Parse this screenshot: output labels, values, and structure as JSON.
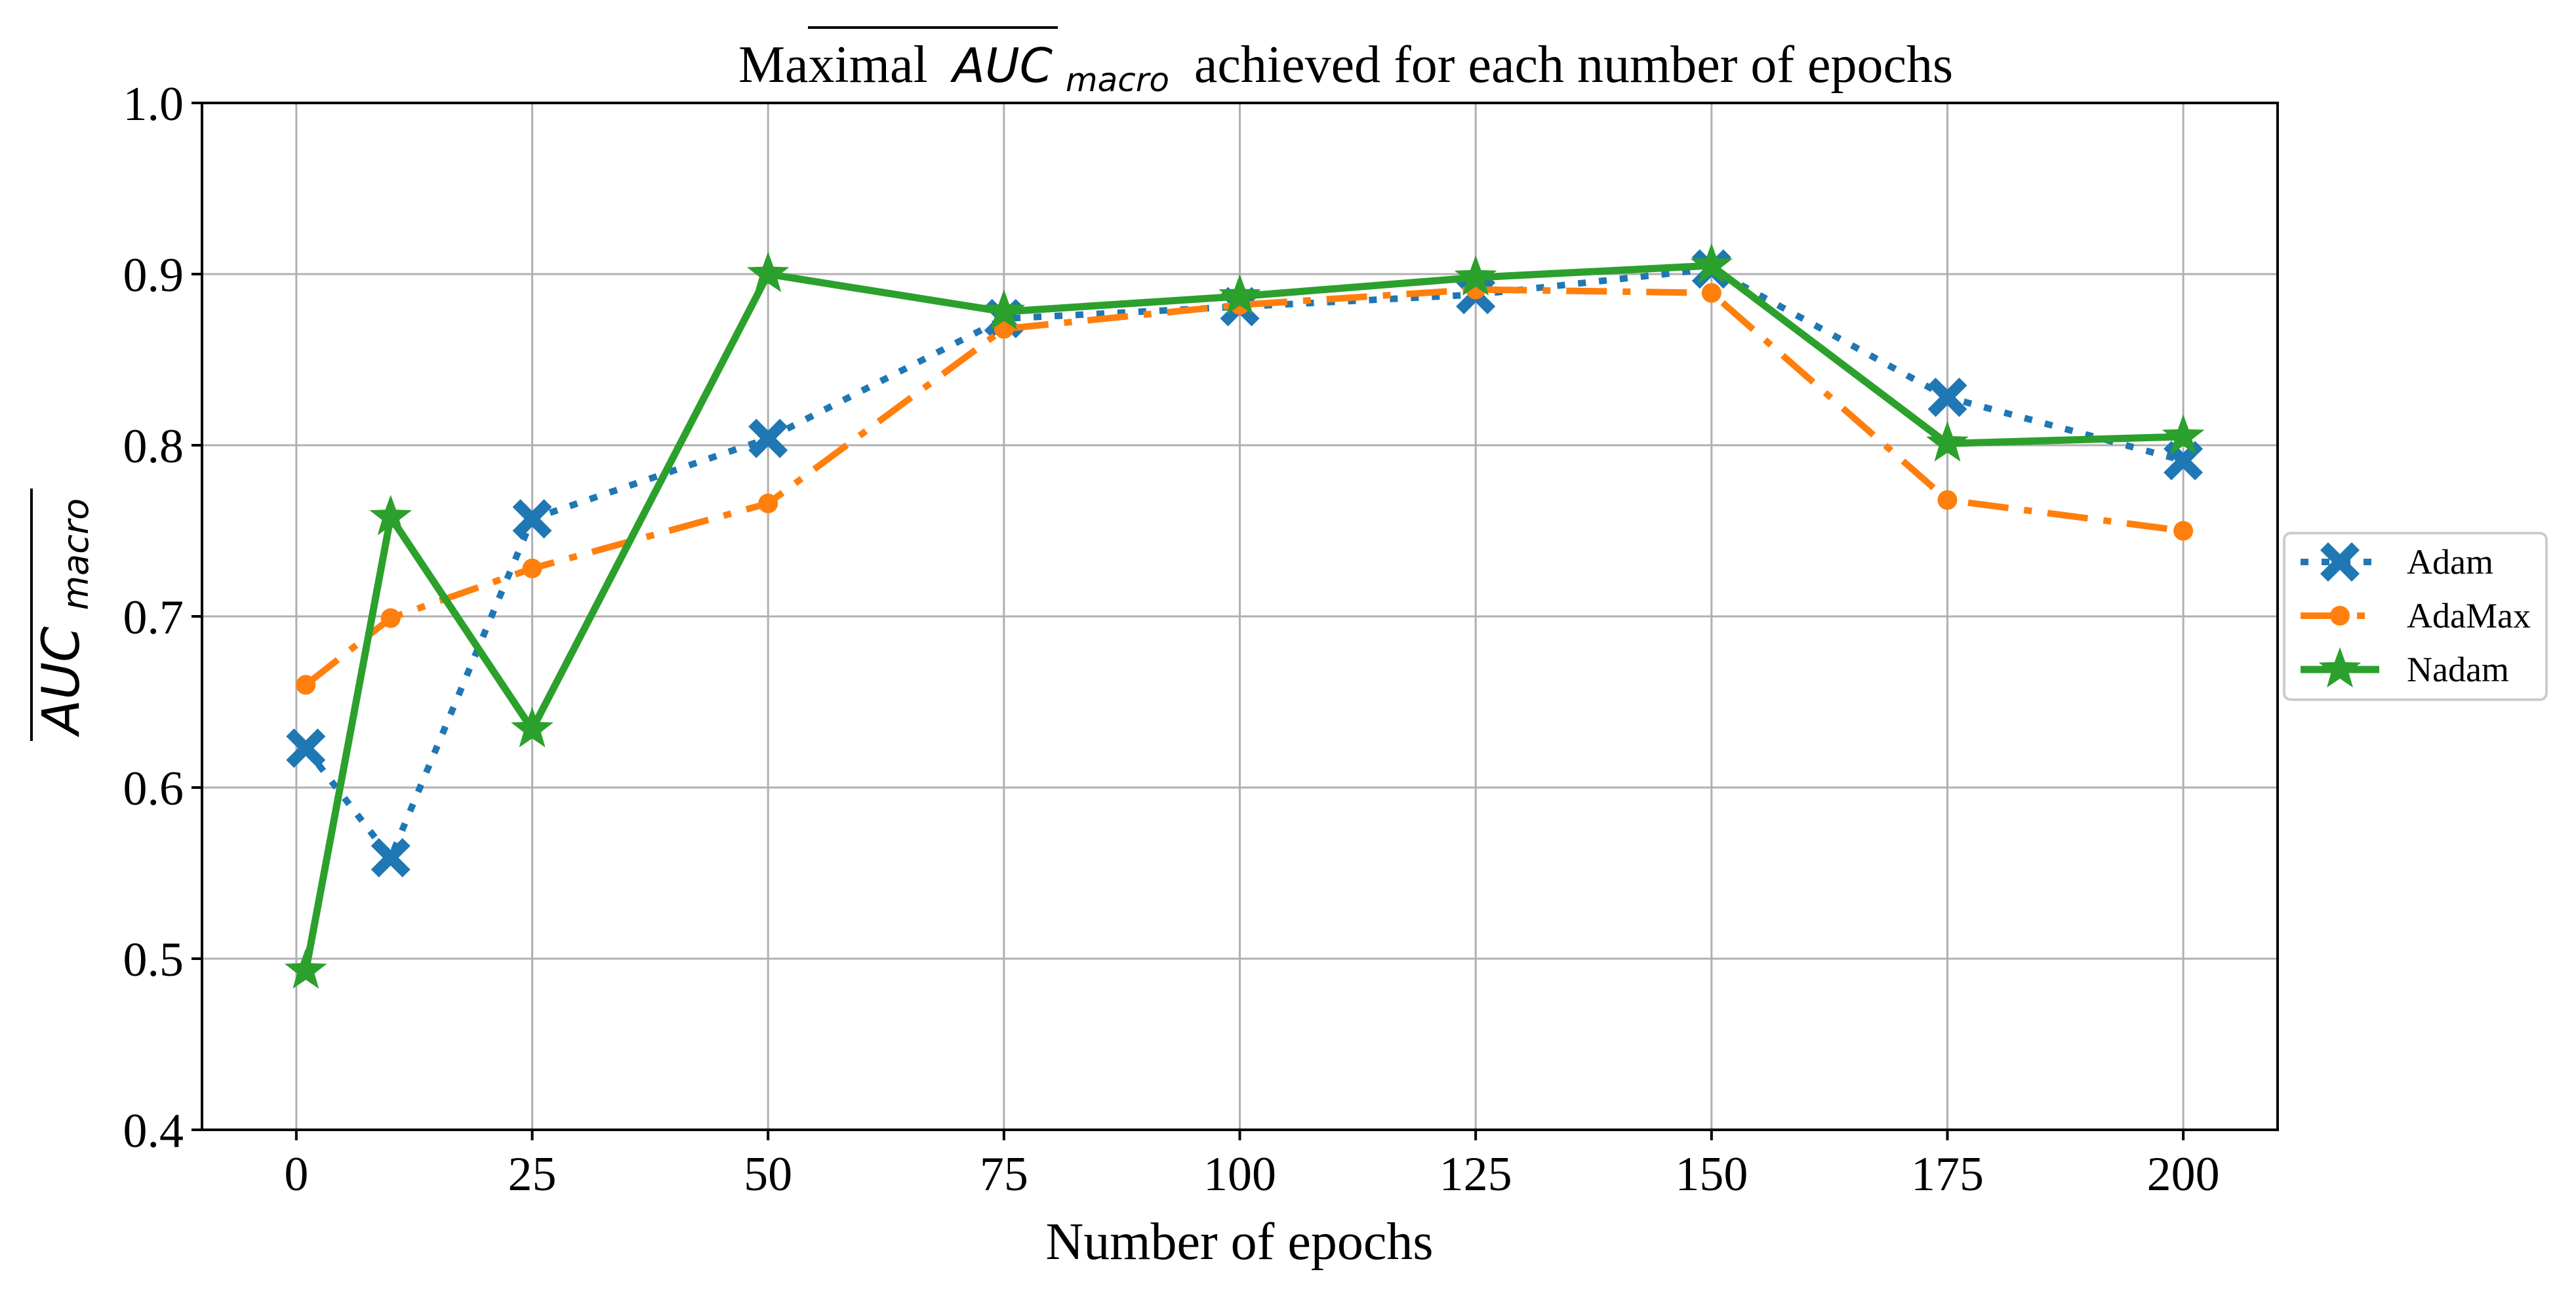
{
  "chart_data": {
    "type": "line",
    "title_prefix": "Maximal",
    "title_symbol": "AUC",
    "title_symbol_sub": "macro",
    "title_suffix": "achieved for each number of epochs",
    "xlabel": "Number of epochs",
    "ylabel_symbol": "AUC",
    "ylabel_sub": "macro",
    "xlim": [
      -10,
      210
    ],
    "ylim": [
      0.4,
      1.0
    ],
    "xticks": [
      0,
      25,
      50,
      75,
      100,
      125,
      150,
      175,
      200
    ],
    "yticks": [
      0.4,
      0.5,
      0.6,
      0.7,
      0.8,
      0.9,
      1.0
    ],
    "ytick_labels": [
      "0.4",
      "0.5",
      "0.6",
      "0.7",
      "0.8",
      "0.9",
      "1.0"
    ],
    "grid": true,
    "legend_position": "right",
    "x": [
      1,
      10,
      25,
      50,
      75,
      100,
      125,
      150,
      175,
      200
    ],
    "series": [
      {
        "name": "Adam",
        "color": "#1f77b4",
        "style": "dotted",
        "marker": "X",
        "values": [
          0.623,
          0.559,
          0.757,
          0.804,
          0.874,
          0.881,
          0.888,
          0.903,
          0.828,
          0.791
        ]
      },
      {
        "name": "AdaMax",
        "color": "#ff7f0e",
        "style": "dashdot",
        "marker": "circle",
        "values": [
          0.66,
          0.699,
          0.728,
          0.766,
          0.868,
          0.882,
          0.891,
          0.889,
          0.768,
          0.75
        ]
      },
      {
        "name": "Nadam",
        "color": "#2ca02c",
        "style": "solid",
        "marker": "star",
        "values": [
          0.493,
          0.758,
          0.634,
          0.9,
          0.878,
          0.887,
          0.898,
          0.905,
          0.801,
          0.805
        ]
      }
    ]
  }
}
